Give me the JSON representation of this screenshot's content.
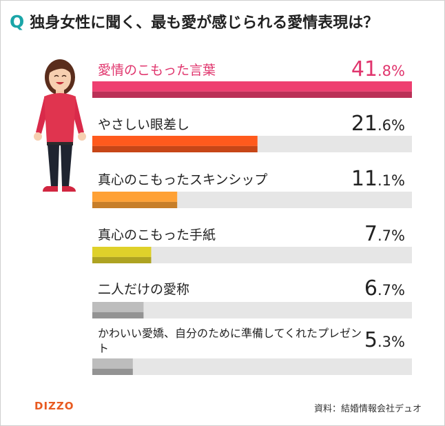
{
  "title": {
    "q": "Q",
    "text": "独身女性に聞く、最も愛が感じられる愛情表現は？"
  },
  "chart_data": {
    "type": "bar",
    "orientation": "horizontal",
    "categories": [
      "愛情のこもった言葉",
      "やさしい眼差し",
      "真心のこもったスキンシップ",
      "真心のこもった手紙",
      "二人だけの愛称",
      "かわいい愛嬌、自分のために準備してくれたプレゼント"
    ],
    "values": [
      41.8,
      21.6,
      11.1,
      7.7,
      6.7,
      5.3
    ],
    "value_labels": [
      {
        "int": "41",
        "dec": ".8%"
      },
      {
        "int": "21",
        "dec": ".6%"
      },
      {
        "int": "11",
        "dec": ".1%"
      },
      {
        "int": "7",
        "dec": ".7%"
      },
      {
        "int": "6",
        "dec": ".7%"
      },
      {
        "int": "5",
        "dec": ".3%"
      }
    ],
    "xlim": [
      0,
      41.8
    ],
    "colors": [
      "#ee3f70",
      "#ff5a1d",
      "#ffa135",
      "#dfd12a",
      "#bdbdbd",
      "#bdbdbd"
    ],
    "track_color": "#e6e6e6",
    "highlight_color": "#e0356d"
  },
  "footer": {
    "logo": "DIZZO",
    "source": "資料：結婚情報会社デュオ"
  }
}
